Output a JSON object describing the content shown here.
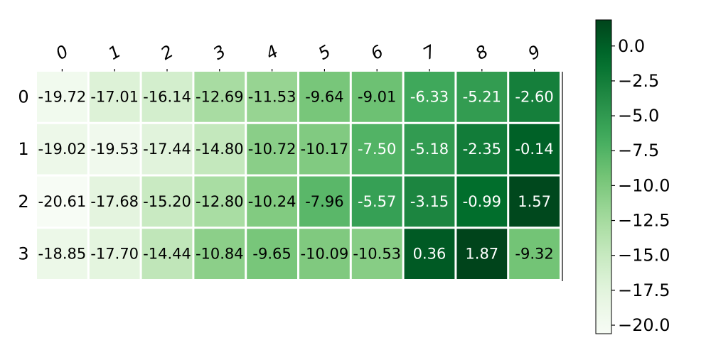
{
  "chart_data": {
    "type": "heatmap",
    "title": "",
    "xlabel": "",
    "ylabel": "",
    "x_categories": [
      "0",
      "1",
      "2",
      "3",
      "4",
      "5",
      "6",
      "7",
      "8",
      "9"
    ],
    "y_categories": [
      "0",
      "1",
      "2",
      "3"
    ],
    "x_axis_position": "top",
    "values": [
      [
        -19.72,
        -17.01,
        -16.14,
        -12.69,
        -11.53,
        -9.64,
        -9.01,
        -6.33,
        -5.21,
        -2.6
      ],
      [
        -19.02,
        -19.53,
        -17.44,
        -14.8,
        -10.72,
        -10.17,
        -7.5,
        -5.18,
        -2.35,
        -0.14
      ],
      [
        -20.61,
        -17.68,
        -15.2,
        -12.8,
        -10.24,
        -7.96,
        -5.57,
        -3.15,
        -0.99,
        1.57
      ],
      [
        -18.85,
        -17.7,
        -14.44,
        -10.84,
        -9.65,
        -10.09,
        -10.53,
        0.36,
        1.87,
        -9.32
      ]
    ],
    "value_format": "2 decimals",
    "colormap": "Greens",
    "color_range": [
      -20.61,
      1.87
    ],
    "colorbar": {
      "position": "right",
      "ticks": [
        0.0,
        -2.5,
        -5.0,
        -7.5,
        -10.0,
        -12.5,
        -15.0,
        -17.5,
        -20.0
      ],
      "tick_labels": [
        "0.0",
        "−2.5",
        "−5.0",
        "−7.5",
        "−10.0",
        "−12.5",
        "−15.0",
        "−17.5",
        "−20.0"
      ]
    },
    "grid": false,
    "colors": {
      "low": "#f7fcf5",
      "high": "#00441b"
    }
  }
}
